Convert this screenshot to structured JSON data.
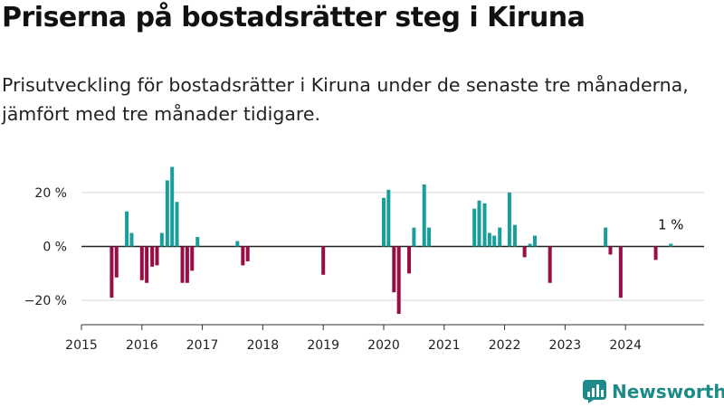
{
  "title": "Priserna på bostadsrätter steg i Kiruna",
  "subtitle": "Prisutveckling för bostadsrätter i Kiruna under de senaste tre månaderna, jämfört med tre månader tidigare.",
  "brand": {
    "name": "Newsworthy",
    "icon": "newsworthy-logo-icon",
    "color": "#1b8a88"
  },
  "colors": {
    "positive": "#1a9e9b",
    "negative": "#990d45"
  },
  "chart_data": {
    "type": "bar",
    "title": "Priserna på bostadsrätter steg i Kiruna",
    "xlabel": "",
    "ylabel": "",
    "ylim": [
      -29,
      31
    ],
    "xlim": [
      2015.0,
      2025.3
    ],
    "y_ticks": [
      20,
      0,
      -20
    ],
    "y_tick_labels": [
      "20 %",
      "0 %",
      "−20 %"
    ],
    "x_ticks": [
      2015,
      2016,
      2017,
      2018,
      2019,
      2020,
      2021,
      2022,
      2023,
      2024
    ],
    "x_tick_labels": [
      "2015",
      "2016",
      "2017",
      "2018",
      "2019",
      "2020",
      "2021",
      "2022",
      "2023",
      "2024"
    ],
    "annotation": {
      "text": "1 %",
      "x": 2024.75,
      "y": 1
    },
    "bar_width_years": 0.06,
    "x": [
      2015.5,
      2015.58,
      2015.75,
      2015.83,
      2016.0,
      2016.08,
      2016.17,
      2016.25,
      2016.33,
      2016.42,
      2016.5,
      2016.58,
      2016.67,
      2016.75,
      2016.83,
      2016.92,
      2017.58,
      2017.67,
      2017.75,
      2019.0,
      2020.0,
      2020.08,
      2020.17,
      2020.25,
      2020.42,
      2020.5,
      2020.67,
      2020.75,
      2021.5,
      2021.58,
      2021.67,
      2021.75,
      2021.83,
      2021.92,
      2022.08,
      2022.17,
      2022.33,
      2022.42,
      2022.5,
      2022.75,
      2023.67,
      2023.75,
      2023.92,
      2024.5,
      2024.75
    ],
    "values": [
      -19,
      -11.5,
      13,
      5,
      -12.5,
      -13.5,
      -7.5,
      -7,
      5,
      24.5,
      29.5,
      16.5,
      -13.5,
      -13.5,
      -9,
      3.5,
      2,
      -7,
      -5.5,
      -10.5,
      18,
      21,
      -17,
      -25,
      -10,
      7,
      23,
      7,
      14,
      17,
      16,
      5,
      4,
      7,
      20,
      8,
      -4,
      1,
      4,
      -13.5,
      7,
      -3,
      -19,
      -5,
      1
    ]
  }
}
